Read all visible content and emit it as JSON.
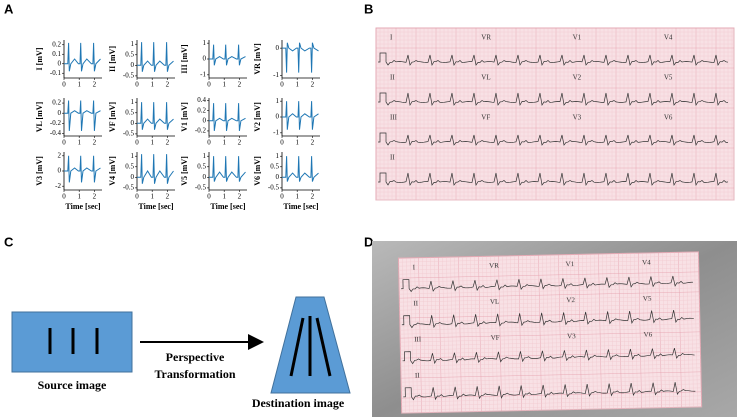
{
  "panel_a": {
    "label": "A",
    "xlabel": "Time [sec]",
    "color": "#1f77b4",
    "xlim": [
      0,
      2.5
    ],
    "xticks": [
      0,
      1,
      2
    ],
    "x": [
      0,
      0.25,
      0.3,
      0.35,
      0.45,
      0.7,
      0.95,
      1.05,
      1.1,
      1.15,
      1.25,
      1.5,
      1.8,
      1.9,
      1.95,
      2,
      2.1,
      2.4
    ],
    "plots": [
      {
        "ylabel": "I [mV]",
        "ylim": [
          -0.15,
          0.25
        ],
        "yticks": [
          -0.1,
          0,
          0.1,
          0.2
        ],
        "values": [
          0,
          0,
          0.22,
          -0.08,
          0,
          0.05,
          0,
          0,
          0.22,
          -0.08,
          0,
          0.05,
          0,
          0,
          0.22,
          -0.08,
          0,
          0.05
        ]
      },
      {
        "ylabel": "II [mV]",
        "ylim": [
          -0.6,
          1.2
        ],
        "yticks": [
          -0.5,
          0,
          0.5,
          1
        ],
        "values": [
          0,
          0,
          1.1,
          -0.3,
          0,
          0.2,
          0,
          0,
          1.1,
          -0.3,
          0,
          0.2,
          0,
          0,
          1.1,
          -0.3,
          0,
          0.2
        ]
      },
      {
        "ylabel": "III [mV]",
        "ylim": [
          -1.2,
          1.2
        ],
        "yticks": [
          -1,
          0,
          1
        ],
        "values": [
          0,
          0,
          0.9,
          -0.4,
          0,
          0.15,
          0,
          0,
          0.9,
          -0.4,
          0,
          0.15,
          0,
          0,
          0.9,
          -0.4,
          0,
          0.15
        ]
      },
      {
        "ylabel": "VR [mV]",
        "ylim": [
          -1.1,
          0.3
        ],
        "yticks": [
          -1,
          0
        ],
        "values": [
          0,
          0,
          -0.9,
          0.2,
          0,
          -0.1,
          0,
          0,
          -0.9,
          0.2,
          0,
          -0.1,
          0,
          0,
          -0.9,
          0.2,
          0,
          -0.1
        ]
      },
      {
        "ylabel": "VL [mV]",
        "ylim": [
          -0.45,
          0.3
        ],
        "yticks": [
          -0.4,
          -0.2,
          0,
          0.2
        ],
        "values": [
          0,
          0,
          0.25,
          -0.35,
          0,
          0.05,
          0,
          0,
          0.25,
          -0.35,
          0,
          0.05,
          0,
          0,
          0.25,
          -0.35,
          0,
          0.05
        ]
      },
      {
        "ylabel": "VF [mV]",
        "ylim": [
          -0.6,
          1.2
        ],
        "yticks": [
          -0.5,
          0,
          0.5,
          1
        ],
        "values": [
          0,
          0,
          1,
          -0.3,
          0,
          0.2,
          0,
          0,
          1,
          -0.3,
          0,
          0.2,
          0,
          0,
          1,
          -0.3,
          0,
          0.2
        ]
      },
      {
        "ylabel": "V1 [mV]",
        "ylim": [
          -0.3,
          0.45
        ],
        "yticks": [
          -0.2,
          0,
          0.2,
          0.4
        ],
        "values": [
          0,
          0,
          0.35,
          -0.2,
          0,
          0.05,
          0,
          0,
          0.35,
          -0.2,
          0,
          0.05,
          0,
          0,
          0.35,
          -0.2,
          0,
          0.05
        ]
      },
      {
        "ylabel": "V2 [mV]",
        "ylim": [
          -1.2,
          1.2
        ],
        "yticks": [
          -1,
          0,
          1
        ],
        "values": [
          0,
          0,
          1,
          -0.8,
          0,
          0.2,
          0,
          0,
          1,
          -0.8,
          0,
          0.2,
          0,
          0,
          1,
          -0.8,
          0,
          0.2
        ]
      },
      {
        "ylabel": "V3 [mV]",
        "ylim": [
          -2.5,
          2.5
        ],
        "yticks": [
          -2,
          0,
          2
        ],
        "values": [
          0,
          0,
          2,
          -1.5,
          0,
          0.4,
          0,
          0,
          2,
          -1.5,
          0,
          0.4,
          0,
          0,
          2,
          -1.5,
          0,
          0.4
        ]
      },
      {
        "ylabel": "V4 [mV]",
        "ylim": [
          -0.6,
          1.2
        ],
        "yticks": [
          -0.5,
          0,
          0.5,
          1
        ],
        "values": [
          0,
          0,
          1.1,
          -0.3,
          0,
          0.3,
          0,
          0,
          1.1,
          -0.3,
          0,
          0.3,
          0,
          0,
          1.1,
          -0.3,
          0,
          0.3
        ]
      },
      {
        "ylabel": "V5 [mV]",
        "ylim": [
          -0.6,
          1.2
        ],
        "yticks": [
          -0.5,
          0,
          0.5,
          1
        ],
        "values": [
          0,
          0,
          1,
          -0.2,
          0,
          0.25,
          0,
          0,
          1,
          -0.2,
          0,
          0.25,
          0,
          0,
          1,
          -0.2,
          0,
          0.25
        ]
      },
      {
        "ylabel": "V6 [mV]",
        "ylim": [
          -0.6,
          1.2
        ],
        "yticks": [
          -0.5,
          0,
          0.5,
          1
        ],
        "values": [
          0,
          0,
          1,
          -0.2,
          0,
          0.2,
          0,
          0,
          1,
          -0.2,
          0,
          0.2,
          0,
          0,
          1,
          -0.2,
          0,
          0.2
        ]
      }
    ]
  },
  "panel_b": {
    "label": "B",
    "leads": [
      "I",
      "VR",
      "V1",
      "V4",
      "II",
      "VL",
      "V2",
      "V5",
      "III",
      "VF",
      "V3",
      "V6",
      "II"
    ]
  },
  "panel_c": {
    "label": "C",
    "source": "Source image",
    "transform": [
      "Perspective",
      "Transformation"
    ],
    "destination": "Destination image"
  },
  "panel_d": {
    "label": "D",
    "leads": [
      "I",
      "VR",
      "V1",
      "V4",
      "II",
      "VL",
      "V2",
      "V5",
      "III",
      "VF",
      "V3",
      "V6",
      "II"
    ]
  }
}
